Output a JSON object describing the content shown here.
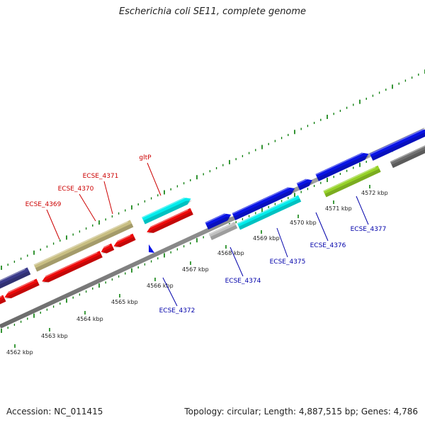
{
  "title": "Escherichia coli SE11, complete genome",
  "footer": {
    "accession": "Accession: NC_011415",
    "topology": "Topology: circular; Length: 4,887,515 bp; Genes: 4,786"
  },
  "scale": {
    "labels": [
      "4562 kbp",
      "4563 kbp",
      "4564 kbp",
      "4565 kbp",
      "4566 kbp",
      "4567 kbp",
      "4568 kbp",
      "4569 kbp",
      "4570 kbp",
      "4571 kbp",
      "4572 kbp"
    ]
  },
  "genes": {
    "top": [
      {
        "name": "ECSE_4369",
        "color": "#cc0000"
      },
      {
        "name": "ECSE_4370",
        "color": "#cc0000"
      },
      {
        "name": "ECSE_4371",
        "color": "#cc0000"
      },
      {
        "name": "gltP",
        "color": "#cc0000"
      }
    ],
    "bottom": [
      {
        "name": "ECSE_4372",
        "color": "#0000aa"
      },
      {
        "name": "ECSE_4374",
        "color": "#0000aa"
      },
      {
        "name": "ECSE_4375",
        "color": "#0000aa"
      },
      {
        "name": "ECSE_4376",
        "color": "#0000aa"
      },
      {
        "name": "ECSE_4377",
        "color": "#0000aa"
      }
    ]
  },
  "colors": {
    "backbone": "#8c8c8c",
    "ticks": "#007a00",
    "forward_cds": "#0a14e6",
    "reverse_cds": "#ee0a0a",
    "rna": "#00ecec",
    "other": "#c8be82",
    "navy": "#3c3c8c",
    "lime": "#96d228",
    "gray": "#707070",
    "silver": "#c0c0c0"
  }
}
